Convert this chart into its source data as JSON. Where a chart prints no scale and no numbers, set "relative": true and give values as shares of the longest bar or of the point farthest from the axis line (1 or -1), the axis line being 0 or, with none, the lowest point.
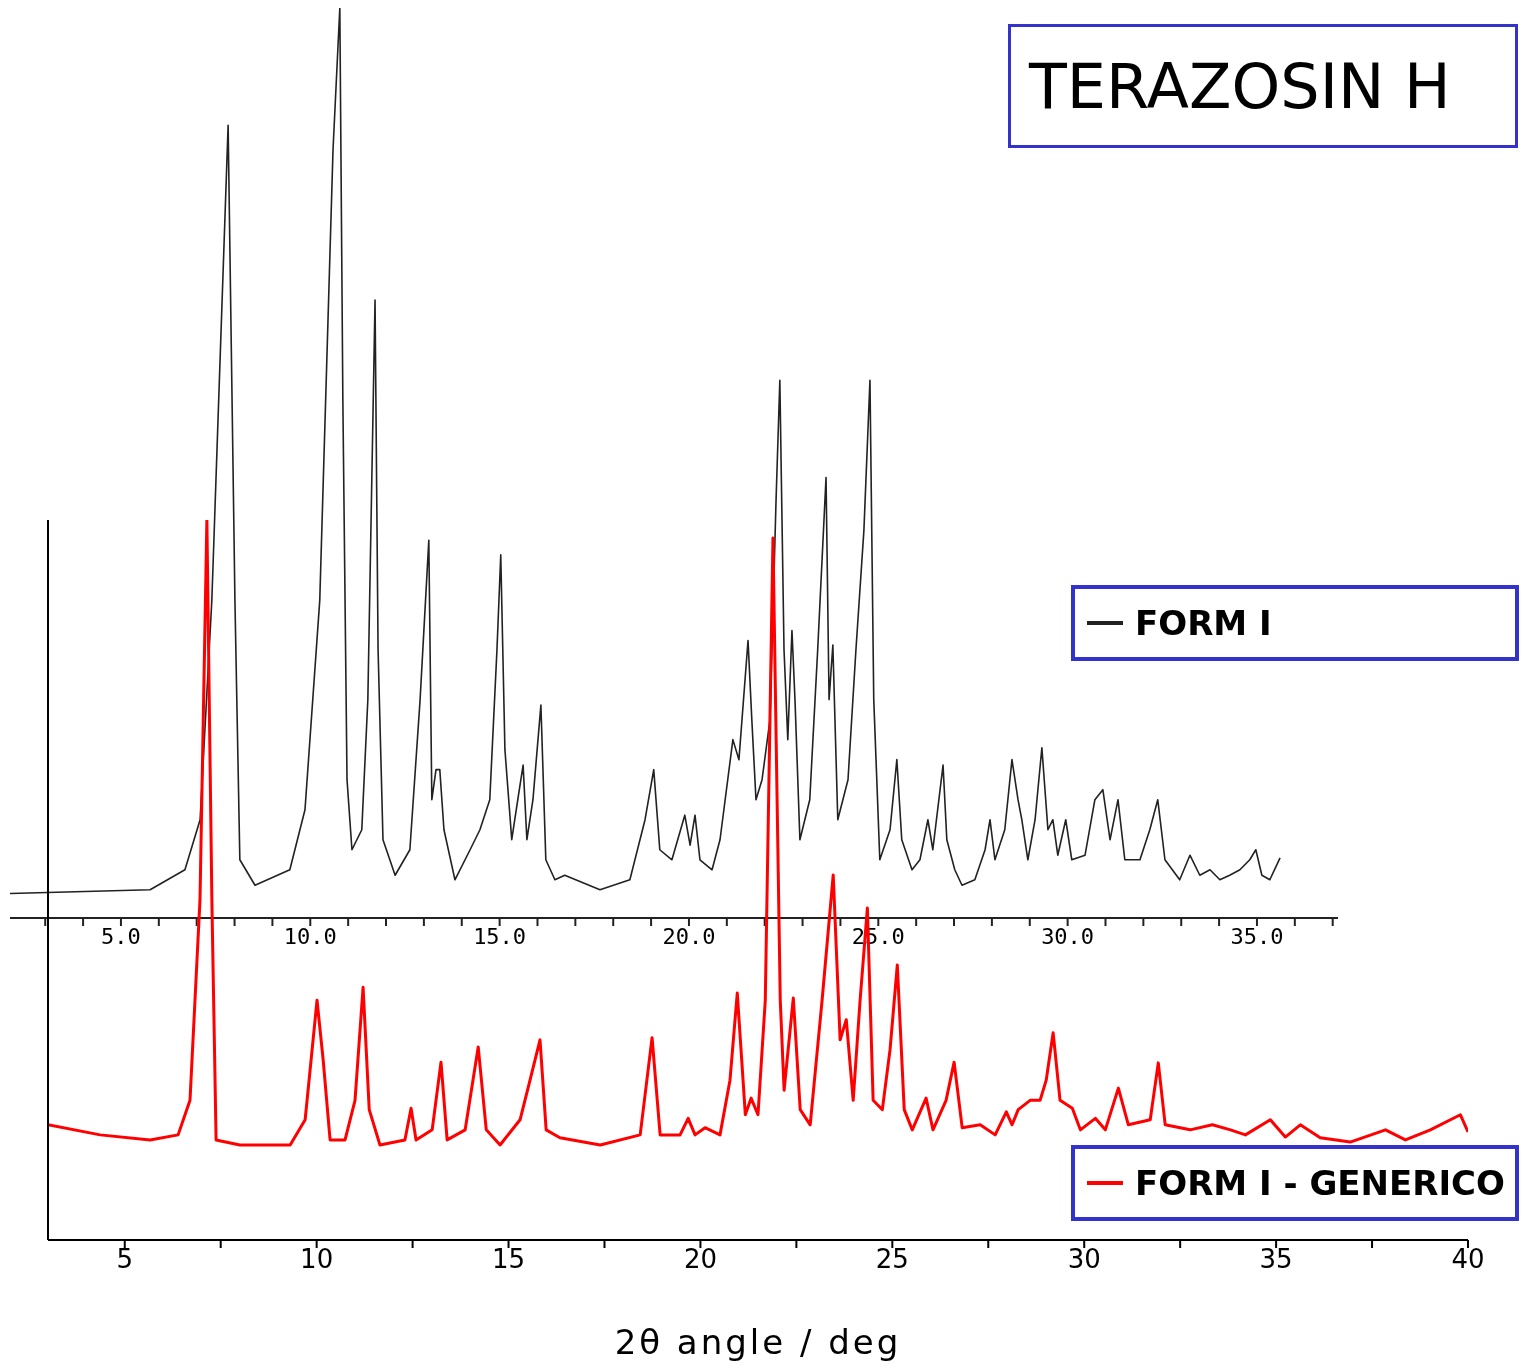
{
  "chart_data": [
    {
      "type": "line",
      "title": "TERAZOSIN H",
      "relative": true,
      "legend": "right",
      "marker": "none",
      "line_style": "solid",
      "grid": false,
      "tick_labels": "x",
      "xlim": [
        2.07,
        37.14
      ],
      "xticks": [
        {
          "value": 3,
          "label": null
        },
        {
          "value": 4,
          "label": null
        },
        {
          "value": 5,
          "label": "5.0"
        },
        {
          "value": 6,
          "label": null
        },
        {
          "value": 7,
          "label": null
        },
        {
          "value": 8,
          "label": null
        },
        {
          "value": 9,
          "label": null
        },
        {
          "value": 10,
          "label": "10.0"
        },
        {
          "value": 11,
          "label": null
        },
        {
          "value": 12,
          "label": null
        },
        {
          "value": 13,
          "label": null
        },
        {
          "value": 14,
          "label": null
        },
        {
          "value": 15,
          "label": "15.0"
        },
        {
          "value": 16,
          "label": null
        },
        {
          "value": 17,
          "label": null
        },
        {
          "value": 18,
          "label": null
        },
        {
          "value": 19,
          "label": null
        },
        {
          "value": 20,
          "label": "20.0"
        },
        {
          "value": 21,
          "label": null
        },
        {
          "value": 22,
          "label": null
        },
        {
          "value": 23,
          "label": null
        },
        {
          "value": 24,
          "label": null
        },
        {
          "value": 25,
          "label": "25.0"
        },
        {
          "value": 26,
          "label": null
        },
        {
          "value": 27,
          "label": null
        },
        {
          "value": 28,
          "label": null
        },
        {
          "value": 29,
          "label": null
        },
        {
          "value": 30,
          "label": "30.0"
        },
        {
          "value": 31,
          "label": null
        },
        {
          "value": 32,
          "label": null
        },
        {
          "value": 33,
          "label": null
        },
        {
          "value": 34,
          "label": null
        },
        {
          "value": 35,
          "label": "35.0"
        },
        {
          "value": 36,
          "label": null
        },
        {
          "value": 37,
          "label": null
        }
      ],
      "series": [
        {
          "name": "FORM I",
          "color": "#222222",
          "x": [
            2.07,
            5.77,
            6.69,
            7.09,
            7.4,
            7.83,
            8.01,
            8.14,
            8.54,
            9.46,
            9.86,
            10.25,
            10.6,
            10.78,
            10.86,
            10.97,
            11.1,
            11.36,
            11.52,
            11.71,
            11.79,
            11.92,
            12.24,
            12.63,
            12.9,
            13.13,
            13.21,
            13.32,
            13.42,
            13.53,
            13.82,
            14.22,
            14.48,
            14.74,
            14.93,
            15.03,
            15.14,
            15.32,
            15.48,
            15.62,
            15.72,
            15.88,
            16.09,
            16.22,
            16.46,
            16.72,
            17.65,
            18.44,
            18.84,
            19.07,
            19.23,
            19.55,
            19.89,
            20.03,
            20.16,
            20.29,
            20.61,
            20.82,
            21.16,
            21.32,
            21.56,
            21.66,
            21.77,
            21.93,
            22.14,
            22.3,
            22.4,
            22.51,
            22.61,
            22.72,
            22.8,
            22.93,
            23.19,
            23.4,
            23.62,
            23.7,
            23.8,
            23.93,
            24.2,
            24.41,
            24.62,
            24.78,
            24.88,
            25.04,
            25.31,
            25.49,
            25.62,
            25.89,
            26.1,
            26.31,
            26.44,
            26.71,
            26.81,
            27.02,
            27.21,
            27.55,
            27.82,
            27.95,
            28.08,
            28.34,
            28.53,
            28.69,
            28.79,
            28.95,
            29.14,
            29.32,
            29.48,
            29.61,
            29.74,
            29.95,
            30.11,
            30.46,
            30.72,
            30.93,
            31.12,
            31.33,
            31.51,
            31.91,
            32.17,
            32.38,
            32.57,
            32.96,
            33.23,
            33.49,
            33.76,
            34.02,
            34.28,
            34.55,
            34.81,
            34.97,
            35.13,
            35.34,
            35.61
          ],
          "values": [
            0.027,
            0.031,
            0.053,
            0.108,
            0.349,
            0.871,
            0.349,
            0.064,
            0.036,
            0.053,
            0.119,
            0.349,
            0.844,
            1.0,
            0.569,
            0.152,
            0.075,
            0.097,
            0.24,
            0.679,
            0.295,
            0.086,
            0.047,
            0.075,
            0.24,
            0.415,
            0.13,
            0.163,
            0.163,
            0.097,
            0.042,
            0.075,
            0.097,
            0.13,
            0.295,
            0.399,
            0.185,
            0.086,
            0.13,
            0.168,
            0.086,
            0.13,
            0.234,
            0.064,
            0.042,
            0.047,
            0.031,
            0.042,
            0.108,
            0.163,
            0.075,
            0.064,
            0.113,
            0.08,
            0.113,
            0.064,
            0.053,
            0.086,
            0.196,
            0.174,
            0.305,
            0.218,
            0.13,
            0.152,
            0.218,
            0.459,
            0.591,
            0.295,
            0.196,
            0.316,
            0.24,
            0.086,
            0.13,
            0.295,
            0.484,
            0.24,
            0.3,
            0.108,
            0.152,
            0.295,
            0.426,
            0.591,
            0.24,
            0.064,
            0.097,
            0.174,
            0.086,
            0.053,
            0.064,
            0.108,
            0.075,
            0.168,
            0.086,
            0.053,
            0.036,
            0.042,
            0.075,
            0.108,
            0.064,
            0.097,
            0.174,
            0.13,
            0.108,
            0.064,
            0.108,
            0.187,
            0.097,
            0.108,
            0.069,
            0.108,
            0.064,
            0.069,
            0.13,
            0.141,
            0.086,
            0.13,
            0.064,
            0.064,
            0.097,
            0.13,
            0.064,
            0.042,
            0.069,
            0.047,
            0.053,
            0.042,
            0.047,
            0.053,
            0.064,
            0.075,
            0.047,
            0.042,
            0.066
          ]
        }
      ]
    },
    {
      "type": "line",
      "xlabel": "2θ angle / deg",
      "relative": true,
      "legend": "right",
      "marker": "none",
      "line_style": "solid",
      "grid": false,
      "xlim": [
        3,
        40
      ],
      "xticks": [
        5,
        {
          "value": 7.5,
          "label": null
        },
        10,
        {
          "value": 12.5,
          "label": null
        },
        15,
        {
          "value": 17.5,
          "label": null
        },
        20,
        {
          "value": 22.5,
          "label": null
        },
        25,
        {
          "value": 27.5,
          "label": null
        },
        30,
        {
          "value": 32.5,
          "label": null
        },
        35,
        {
          "value": 37.5,
          "label": null
        },
        40
      ],
      "series": [
        {
          "name": "FORM I - GENERICO",
          "color": "#ff0000",
          "x": [
            3.0,
            4.36,
            5.66,
            6.39,
            6.7,
            6.96,
            7.14,
            7.27,
            7.38,
            8.0,
            9.31,
            9.7,
            10.01,
            10.17,
            10.35,
            10.74,
            11.0,
            11.21,
            11.37,
            11.65,
            12.3,
            12.46,
            12.59,
            13.01,
            13.24,
            13.4,
            13.87,
            14.21,
            14.42,
            14.78,
            15.3,
            15.56,
            15.82,
            15.98,
            16.34,
            17.39,
            18.43,
            18.74,
            18.95,
            19.47,
            19.68,
            19.86,
            20.12,
            20.51,
            20.77,
            20.96,
            21.17,
            21.32,
            21.5,
            21.69,
            21.89,
            22.08,
            22.18,
            22.42,
            22.6,
            22.86,
            23.17,
            23.46,
            23.64,
            23.8,
            23.98,
            24.16,
            24.35,
            24.5,
            24.74,
            24.94,
            25.13,
            25.31,
            25.52,
            25.88,
            26.06,
            26.4,
            26.61,
            26.82,
            27.29,
            27.68,
            27.97,
            28.12,
            28.28,
            28.59,
            28.85,
            29.01,
            29.19,
            29.37,
            29.69,
            29.9,
            30.29,
            30.55,
            30.89,
            31.15,
            31.72,
            31.93,
            32.11,
            32.76,
            33.34,
            33.81,
            34.2,
            34.85,
            35.24,
            35.63,
            36.15,
            36.93,
            37.85,
            38.37,
            39.02,
            39.8,
            40.0
          ],
          "values": [
            0.16,
            0.146,
            0.139,
            0.146,
            0.194,
            0.472,
            1.0,
            0.472,
            0.139,
            0.132,
            0.132,
            0.167,
            0.333,
            0.25,
            0.139,
            0.139,
            0.194,
            0.351,
            0.181,
            0.132,
            0.139,
            0.183,
            0.139,
            0.153,
            0.247,
            0.139,
            0.153,
            0.268,
            0.153,
            0.132,
            0.167,
            0.222,
            0.278,
            0.153,
            0.142,
            0.132,
            0.146,
            0.281,
            0.146,
            0.146,
            0.169,
            0.146,
            0.156,
            0.146,
            0.222,
            0.343,
            0.174,
            0.197,
            0.174,
            0.333,
            0.975,
            0.333,
            0.208,
            0.336,
            0.181,
            0.16,
            0.333,
            0.507,
            0.278,
            0.306,
            0.194,
            0.333,
            0.461,
            0.194,
            0.181,
            0.264,
            0.382,
            0.181,
            0.153,
            0.197,
            0.153,
            0.194,
            0.247,
            0.156,
            0.16,
            0.146,
            0.178,
            0.16,
            0.181,
            0.194,
            0.194,
            0.222,
            0.288,
            0.194,
            0.183,
            0.153,
            0.169,
            0.153,
            0.211,
            0.16,
            0.167,
            0.246,
            0.16,
            0.153,
            0.16,
            0.153,
            0.146,
            0.167,
            0.143,
            0.16,
            0.142,
            0.136,
            0.153,
            0.139,
            0.153,
            0.174,
            0.15
          ]
        }
      ]
    }
  ]
}
